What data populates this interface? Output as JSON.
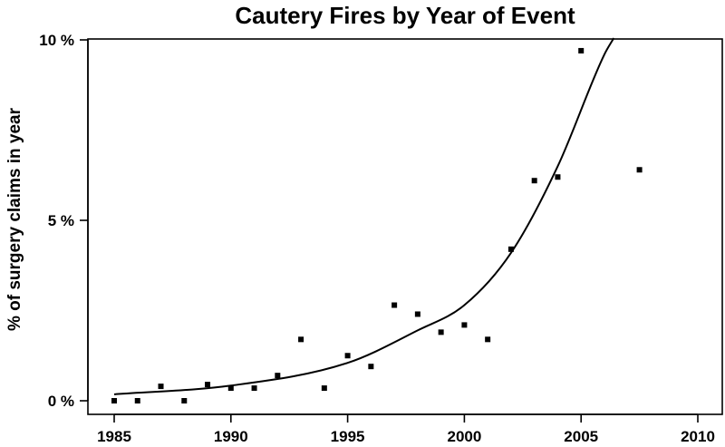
{
  "chart_data": {
    "type": "scatter",
    "title": "Cautery Fires by Year of Event",
    "xlabel": "",
    "ylabel": "% of surgery claims in year",
    "xlim": [
      1985,
      2010
    ],
    "ylim": [
      0,
      10
    ],
    "x_ticks": [
      1985,
      1990,
      1995,
      2000,
      2005,
      2010
    ],
    "x_tick_labels": [
      "1985",
      "1990",
      "1995",
      "2000",
      "2005",
      "2010"
    ],
    "y_ticks": [
      0,
      5,
      10
    ],
    "y_tick_labels": [
      "0 %",
      "5 %",
      "10 %"
    ],
    "grid": false,
    "series": [
      {
        "type": "scatter",
        "marker": "square",
        "color": "#000000",
        "points": [
          {
            "x": 1985,
            "y": 0.0
          },
          {
            "x": 1986,
            "y": 0.0
          },
          {
            "x": 1987,
            "y": 0.4
          },
          {
            "x": 1988,
            "y": 0.0
          },
          {
            "x": 1989,
            "y": 0.45
          },
          {
            "x": 1990,
            "y": 0.35
          },
          {
            "x": 1991,
            "y": 0.35
          },
          {
            "x": 1992,
            "y": 0.7
          },
          {
            "x": 1993,
            "y": 1.7
          },
          {
            "x": 1994,
            "y": 0.35
          },
          {
            "x": 1995,
            "y": 1.25
          },
          {
            "x": 1996,
            "y": 0.95
          },
          {
            "x": 1997,
            "y": 2.65
          },
          {
            "x": 1998,
            "y": 2.4
          },
          {
            "x": 1999,
            "y": 1.9
          },
          {
            "x": 2000,
            "y": 2.1
          },
          {
            "x": 2001,
            "y": 1.7
          },
          {
            "x": 2002,
            "y": 4.2
          },
          {
            "x": 2003,
            "y": 6.1
          },
          {
            "x": 2004,
            "y": 6.2
          },
          {
            "x": 2005,
            "y": 9.7
          },
          {
            "x": 2007.5,
            "y": 6.4
          }
        ]
      },
      {
        "type": "line",
        "color": "#000000",
        "points": [
          {
            "x": 1985,
            "y": 0.18
          },
          {
            "x": 1990,
            "y": 0.42
          },
          {
            "x": 1995,
            "y": 1.05
          },
          {
            "x": 1998,
            "y": 1.95
          },
          {
            "x": 2000,
            "y": 2.65
          },
          {
            "x": 2002,
            "y": 4.1
          },
          {
            "x": 2004,
            "y": 6.5
          },
          {
            "x": 2006,
            "y": 9.6
          },
          {
            "x": 2006.4,
            "y": 10.05
          }
        ]
      }
    ]
  }
}
